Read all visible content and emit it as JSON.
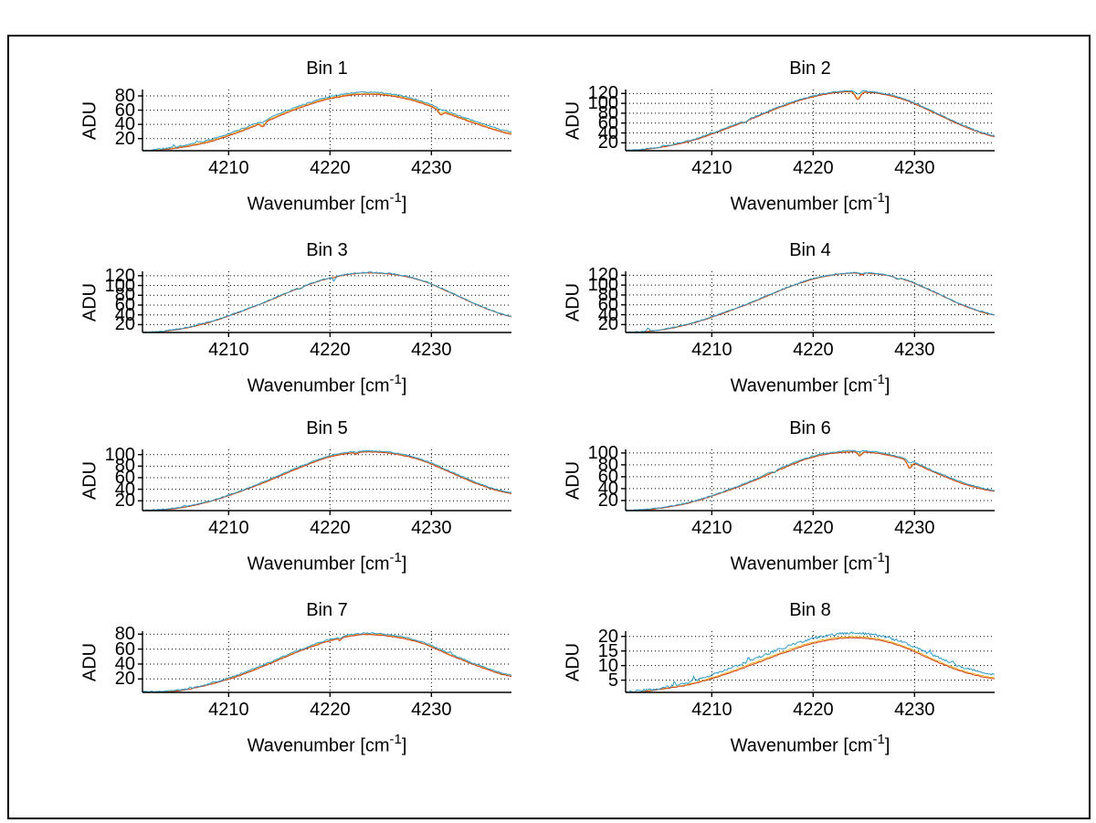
{
  "figure": {
    "background": "#ffffff",
    "border_color": "#000000"
  },
  "labels": {
    "ylabel": "ADU",
    "xlabel_main": "Wavenumber [cm",
    "xlabel_sup": "-1",
    "xlabel_end": "]"
  },
  "colors": {
    "blue": "#2E9BC9",
    "yellow": "#EDB120",
    "red": "#D0421B",
    "axis": "#000000",
    "grid": "#000000"
  },
  "chart_data": [
    {
      "type": "line",
      "title": "Bin 1",
      "xlabel": "Wavenumber [cm-1]",
      "ylabel": "ADU",
      "xlim": [
        4201.5,
        4237.9
      ],
      "ylim": [
        3,
        89
      ],
      "xticks": [
        4210,
        4220,
        4230
      ],
      "yticks": [
        20,
        40,
        60,
        80
      ],
      "x_control_start": 4202,
      "x_control_step": 3,
      "series": {
        "blue": [
          3.8,
          9,
          18,
          32,
          49,
          66,
          79,
          85,
          83,
          73,
          56,
          41,
          29
        ],
        "red": [
          2.5,
          7,
          15,
          29,
          46,
          63,
          76,
          82,
          80,
          70,
          53,
          38,
          26
        ],
        "yellow_mix": 0.4
      },
      "dips": [
        {
          "x": 4213.4,
          "w": 0.3,
          "blue": 3,
          "red": 6
        },
        {
          "x": 4230.9,
          "w": 0.3,
          "blue": 2,
          "red": 6
        }
      ],
      "spikes": [
        {
          "x": 4204.6,
          "h": 3
        },
        {
          "x": 4206.9,
          "h": 2.5
        }
      ],
      "noise": {
        "blue": 0.9,
        "yellow": 0.5,
        "red": 0.45
      }
    },
    {
      "type": "line",
      "title": "Bin 2",
      "xlabel": "Wavenumber [cm-1]",
      "ylabel": "ADU",
      "xlim": [
        4201.5,
        4237.9
      ],
      "ylim": [
        4,
        128
      ],
      "xticks": [
        4210,
        4220,
        4230
      ],
      "yticks": [
        20,
        40,
        60,
        80,
        100,
        120
      ],
      "x_control_start": 4202,
      "x_control_step": 3,
      "series": {
        "blue": [
          5,
          12,
          26,
          47,
          71,
          96,
          115,
          125,
          123,
          109,
          82,
          54,
          34
        ],
        "red": [
          3.5,
          11,
          24,
          45,
          69,
          94,
          113,
          123,
          121,
          107,
          80,
          52,
          32
        ],
        "yellow_mix": 0.4
      },
      "dips": [
        {
          "x": 4224.4,
          "w": 0.35,
          "blue": 6,
          "red": 16
        },
        {
          "x": 4213.3,
          "w": 0.25,
          "blue": 4,
          "red": 2
        }
      ],
      "spikes": [
        {
          "x": 4205.2,
          "h": 2.5
        }
      ],
      "noise": {
        "blue": 1.1,
        "yellow": 0.55,
        "red": 0.5
      }
    },
    {
      "type": "line",
      "title": "Bin 3",
      "xlabel": "Wavenumber [cm-1]",
      "ylabel": "ADU",
      "xlim": [
        4201.5,
        4237.9
      ],
      "ylim": [
        4,
        129
      ],
      "xticks": [
        4210,
        4220,
        4230
      ],
      "yticks": [
        20,
        40,
        60,
        80,
        100,
        120
      ],
      "x_control_start": 4202,
      "x_control_step": 3,
      "series": {
        "blue": [
          4.8,
          11,
          25,
          46,
          70,
          96,
          116,
          126,
          124,
          111,
          85,
          57,
          37
        ],
        "red": [
          3.5,
          10,
          24,
          45,
          69,
          95,
          115,
          125,
          123,
          110,
          84,
          56,
          36
        ],
        "yellow_mix": 0.4
      },
      "dips": [
        {
          "x": 4217.1,
          "w": 0.25,
          "blue": 4,
          "red": 2
        },
        {
          "x": 4220.4,
          "w": 0.2,
          "blue": 8,
          "red": 1
        }
      ],
      "spikes": [
        {
          "x": 4207.1,
          "h": 2.5
        }
      ],
      "noise": {
        "blue": 1.1,
        "yellow": 0.55,
        "red": 0.5
      }
    },
    {
      "type": "line",
      "title": "Bin 4",
      "xlabel": "Wavenumber [cm-1]",
      "ylabel": "ADU",
      "xlim": [
        4201.5,
        4237.9
      ],
      "ylim": [
        4,
        128
      ],
      "xticks": [
        4210,
        4220,
        4230
      ],
      "yticks": [
        20,
        40,
        60,
        80,
        100,
        120
      ],
      "x_control_start": 4202,
      "x_control_step": 3,
      "series": {
        "blue": [
          4.8,
          10,
          23,
          43,
          66,
          92,
          113,
          124,
          124,
          112,
          86,
          58,
          40
        ],
        "red": [
          3.5,
          9,
          22,
          42,
          65,
          91,
          112,
          123,
          123,
          111,
          85,
          57,
          39
        ],
        "yellow_mix": 0.4
      },
      "dips": [
        {
          "x": 4224.8,
          "w": 0.25,
          "blue": 2,
          "red": 4
        },
        {
          "x": 4228.3,
          "w": 0.25,
          "blue": 3,
          "red": 3
        }
      ],
      "spikes": [
        {
          "x": 4203.7,
          "h": 7
        }
      ],
      "noise": {
        "blue": 1.1,
        "yellow": 0.55,
        "red": 0.5
      }
    },
    {
      "type": "line",
      "title": "Bin 5",
      "xlabel": "Wavenumber [cm-1]",
      "ylabel": "ADU",
      "xlim": [
        4201.5,
        4237.9
      ],
      "ylim": [
        3,
        109
      ],
      "xticks": [
        4210,
        4220,
        4230
      ],
      "yticks": [
        20,
        40,
        60,
        80,
        100
      ],
      "x_control_start": 4202,
      "x_control_step": 3,
      "series": {
        "blue": [
          3.8,
          8,
          19,
          36,
          57,
          79,
          98,
          106,
          104,
          92,
          70,
          48,
          34
        ],
        "red": [
          2.5,
          7,
          18,
          35,
          55,
          77,
          96,
          104,
          102,
          90,
          68,
          46,
          32
        ],
        "yellow_mix": 0.4
      },
      "dips": [
        {
          "x": 4222.6,
          "w": 0.2,
          "blue": 2,
          "red": 3
        }
      ],
      "spikes": [
        {
          "x": 4205.6,
          "h": 2.5
        }
      ],
      "noise": {
        "blue": 0.9,
        "yellow": 0.5,
        "red": 0.45
      }
    },
    {
      "type": "line",
      "title": "Bin 6",
      "xlabel": "Wavenumber [cm-1]",
      "ylabel": "ADU",
      "xlim": [
        4201.5,
        4237.9
      ],
      "ylim": [
        3,
        106
      ],
      "xticks": [
        4210,
        4220,
        4230
      ],
      "yticks": [
        20,
        40,
        60,
        80,
        100
      ],
      "x_control_start": 4202,
      "x_control_step": 3,
      "series": {
        "blue": [
          3.8,
          8,
          18,
          34,
          54,
          76,
          95,
          103,
          102,
          91,
          69,
          49,
          37
        ],
        "red": [
          2.5,
          7,
          17,
          33,
          52,
          74,
          93,
          101,
          100,
          89,
          67,
          47,
          35
        ],
        "yellow_mix": 0.4
      },
      "dips": [
        {
          "x": 4224.6,
          "w": 0.25,
          "blue": 2,
          "red": 7
        },
        {
          "x": 4229.5,
          "w": 0.3,
          "blue": 4,
          "red": 12
        },
        {
          "x": 4216.2,
          "w": 0.2,
          "blue": 4,
          "red": 1
        }
      ],
      "spikes": [],
      "noise": {
        "blue": 0.9,
        "yellow": 0.5,
        "red": 0.45
      }
    },
    {
      "type": "line",
      "title": "Bin 7",
      "xlabel": "Wavenumber [cm-1]",
      "ylabel": "ADU",
      "xlim": [
        4201.5,
        4237.9
      ],
      "ylim": [
        2,
        84
      ],
      "xticks": [
        4210,
        4220,
        4230
      ],
      "yticks": [
        20,
        40,
        60,
        80
      ],
      "x_control_start": 4202,
      "x_control_step": 3,
      "series": {
        "blue": [
          2.8,
          5,
          13,
          26,
          42,
          59,
          73,
          81,
          79,
          70,
          53,
          37,
          25
        ],
        "red": [
          1.5,
          4,
          12,
          24,
          40,
          57,
          71,
          79,
          77,
          68,
          51,
          35,
          23
        ],
        " yellow_mix_note": "",
        "yellow_mix": 0.4
      },
      "dips": [
        {
          "x": 4221.0,
          "w": 0.2,
          "blue": 2,
          "red": 3
        }
      ],
      "spikes": [
        {
          "x": 4206.2,
          "h": 2.5
        },
        {
          "x": 4208.4,
          "h": 2
        },
        {
          "x": 4231.9,
          "h": 3
        }
      ],
      "noise": {
        "blue": 0.8,
        "yellow": 0.45,
        "red": 0.4
      }
    },
    {
      "type": "line",
      "title": "Bin 8",
      "xlabel": "Wavenumber [cm-1]",
      "ylabel": "ADU",
      "xlim": [
        4201.5,
        4237.9
      ],
      "ylim": [
        0.8,
        21.8
      ],
      "xticks": [
        4210,
        4220,
        4230
      ],
      "yticks": [
        5,
        10,
        15,
        20
      ],
      "x_control_start": 4202,
      "x_control_step": 3,
      "series": {
        "blue": [
          1.1,
          2.3,
          4.5,
          8,
          12,
          16,
          19.3,
          21,
          20.6,
          17.8,
          13.2,
          9.2,
          7
        ],
        "red": [
          0.6,
          1.9,
          3.6,
          6.6,
          10.3,
          14.2,
          17.6,
          19.4,
          19,
          16.2,
          11.6,
          7.6,
          5.4
        ],
        "yellow_mix": 0.25
      },
      "dips": [],
      "spikes": [
        {
          "x": 4206.3,
          "h": 1.2
        },
        {
          "x": 4208.2,
          "h": 1.5
        },
        {
          "x": 4213.6,
          "h": 1.1
        },
        {
          "x": 4231.5,
          "h": 1.5
        },
        {
          "x": 4233.8,
          "h": 1.2
        }
      ],
      "noise": {
        "blue": 0.4,
        "yellow": 0.15,
        "red": 0.12
      }
    }
  ]
}
